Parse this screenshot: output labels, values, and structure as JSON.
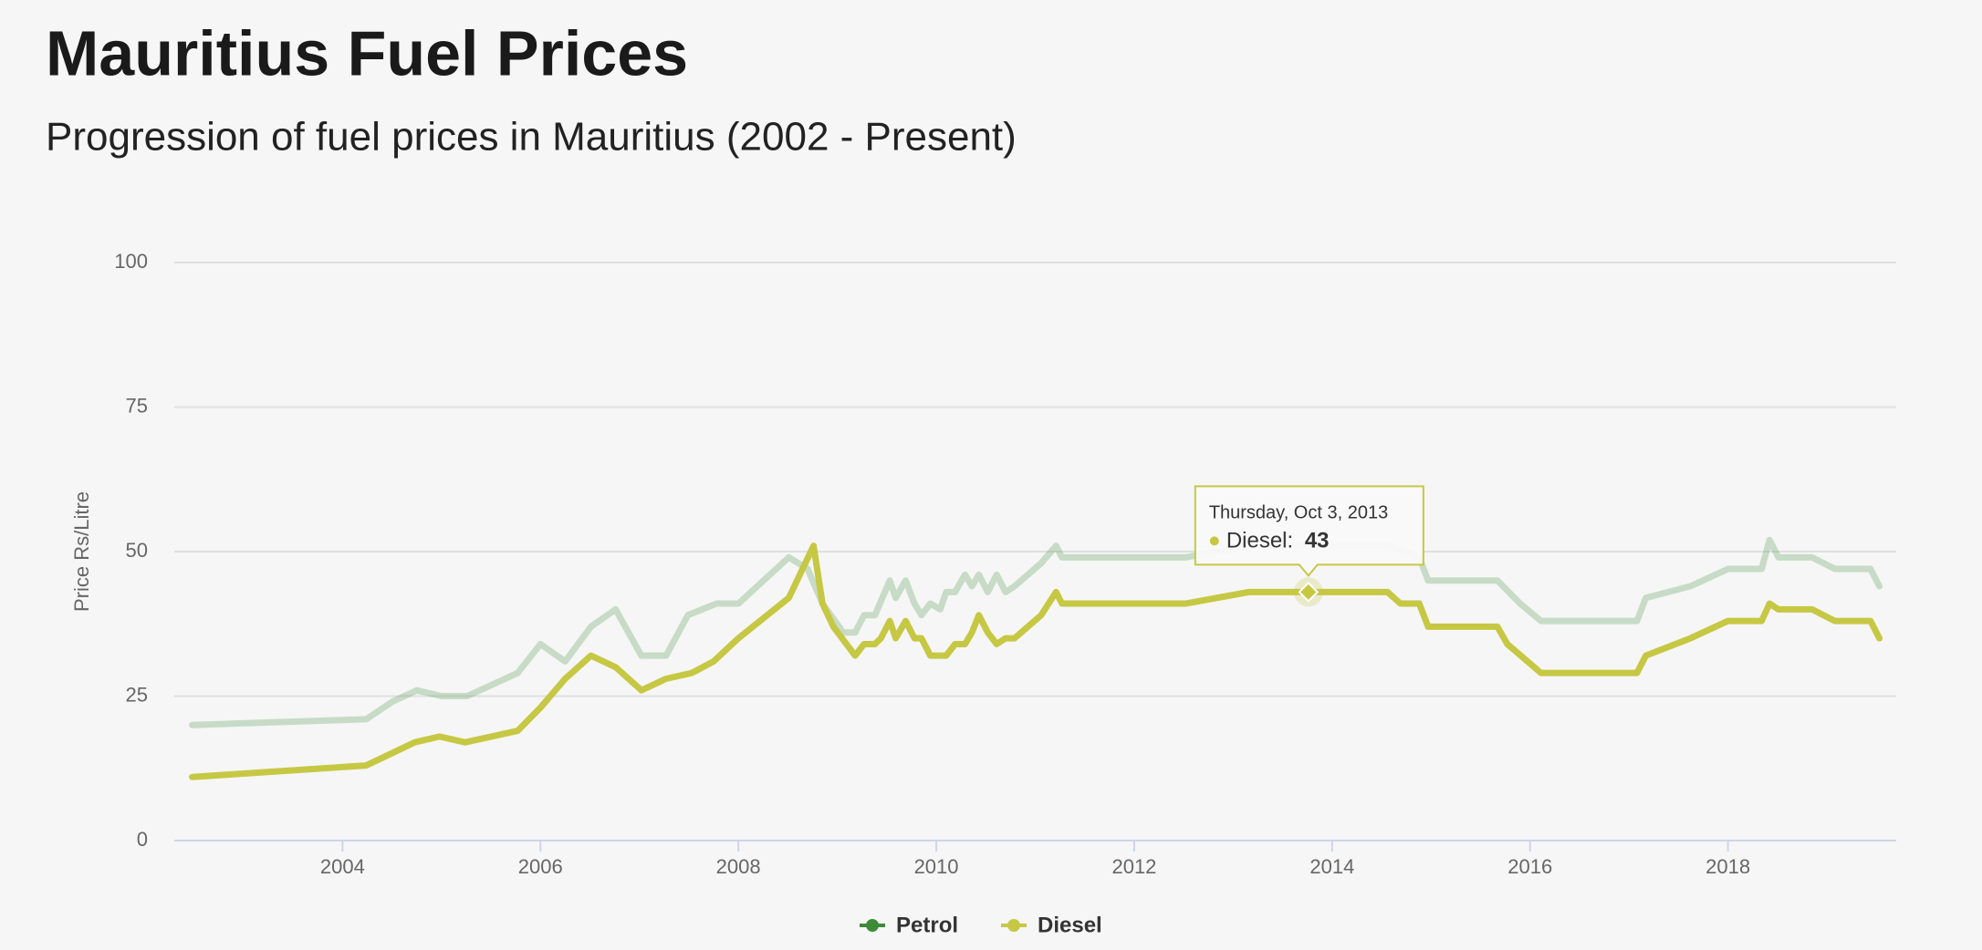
{
  "chart_data": {
    "type": "line",
    "title": "Mauritius Fuel Prices",
    "subtitle": "Progression of fuel prices in Mauritius (2002 - Present)",
    "y_label": "Price Rs/Litre",
    "xlim": [
      2002.3,
      2019.7
    ],
    "xticks": [
      2004,
      2006,
      2008,
      2010,
      2012,
      2014,
      2016,
      2018
    ],
    "ylim": [
      0,
      100
    ],
    "yticks": [
      0,
      25,
      50,
      75,
      100
    ],
    "grid": true,
    "legend": "bottom",
    "series": [
      {
        "name": "Petrol",
        "color": "#3d8b37",
        "x": [
          2002.48,
          2004.24,
          2004.5,
          2004.75,
          2005,
          2005.26,
          2005.77,
          2006,
          2006.25,
          2006.51,
          2006.76,
          2007.02,
          2007.27,
          2007.49,
          2007.78,
          2008,
          2008.51,
          2008.7,
          2008.85,
          2009.06,
          2009.18,
          2009.27,
          2009.38,
          2009.53,
          2009.59,
          2009.69,
          2009.78,
          2009.85,
          2009.94,
          2010.04,
          2010.1,
          2010.19,
          2010.29,
          2010.36,
          2010.43,
          2010.52,
          2010.61,
          2010.7,
          2010.79,
          2011.06,
          2011.21,
          2011.27,
          2012.52,
          2013.16,
          2014.56,
          2014.88,
          2014.97,
          2015.67,
          2015.9,
          2016.11,
          2017.08,
          2017.17,
          2017.62,
          2018,
          2018.34,
          2018.42,
          2018.51,
          2018.85,
          2019.08,
          2019.44,
          2019.53
        ],
        "values": [
          20,
          21,
          24,
          26,
          25,
          25,
          29,
          34,
          31,
          37,
          40,
          32,
          32,
          39,
          41,
          41,
          49,
          47,
          41,
          36,
          36,
          39,
          39,
          45,
          42,
          45,
          41,
          39,
          41,
          40,
          43,
          43,
          46,
          44,
          46,
          43,
          46,
          43,
          44,
          48,
          51,
          49,
          49,
          51,
          51,
          49,
          45,
          45,
          41,
          38,
          38,
          42,
          44,
          47,
          47,
          52,
          49,
          49,
          47,
          47,
          44
        ]
      },
      {
        "name": "Diesel",
        "color": "#c6c844",
        "x": [
          2002.48,
          2004.24,
          2004.73,
          2004.98,
          2005.24,
          2005.77,
          2006,
          2006.25,
          2006.51,
          2006.76,
          2007.02,
          2007.27,
          2007.53,
          2007.75,
          2008,
          2008.51,
          2008.76,
          2008.85,
          2008.96,
          2009.18,
          2009.27,
          2009.38,
          2009.44,
          2009.53,
          2009.59,
          2009.69,
          2009.78,
          2009.85,
          2009.94,
          2010.1,
          2010.19,
          2010.29,
          2010.36,
          2010.43,
          2010.52,
          2010.61,
          2010.7,
          2010.79,
          2011.06,
          2011.21,
          2011.27,
          2012.52,
          2013.16,
          2014.56,
          2014.69,
          2014.88,
          2014.97,
          2015.67,
          2015.77,
          2016.11,
          2017.08,
          2017.17,
          2017.62,
          2018,
          2018.34,
          2018.42,
          2018.51,
          2018.85,
          2019.08,
          2019.44,
          2019.53
        ],
        "values": [
          11,
          13,
          17,
          18,
          17,
          19,
          23,
          28,
          32,
          30,
          26,
          28,
          29,
          31,
          35,
          42,
          51,
          41,
          37,
          32,
          34,
          34,
          35,
          38,
          35,
          38,
          35,
          35,
          32,
          32,
          34,
          34,
          36,
          39,
          36,
          34,
          35,
          35,
          39,
          43,
          41,
          41,
          43,
          43,
          41,
          41,
          37,
          37,
          34,
          29,
          29,
          32,
          35,
          38,
          38,
          41,
          40,
          40,
          38,
          38,
          35
        ]
      }
    ],
    "tooltip": {
      "date": "Thursday, Oct 3, 2013",
      "label": "Diesel:",
      "x": 2013.76,
      "value": 43
    }
  }
}
